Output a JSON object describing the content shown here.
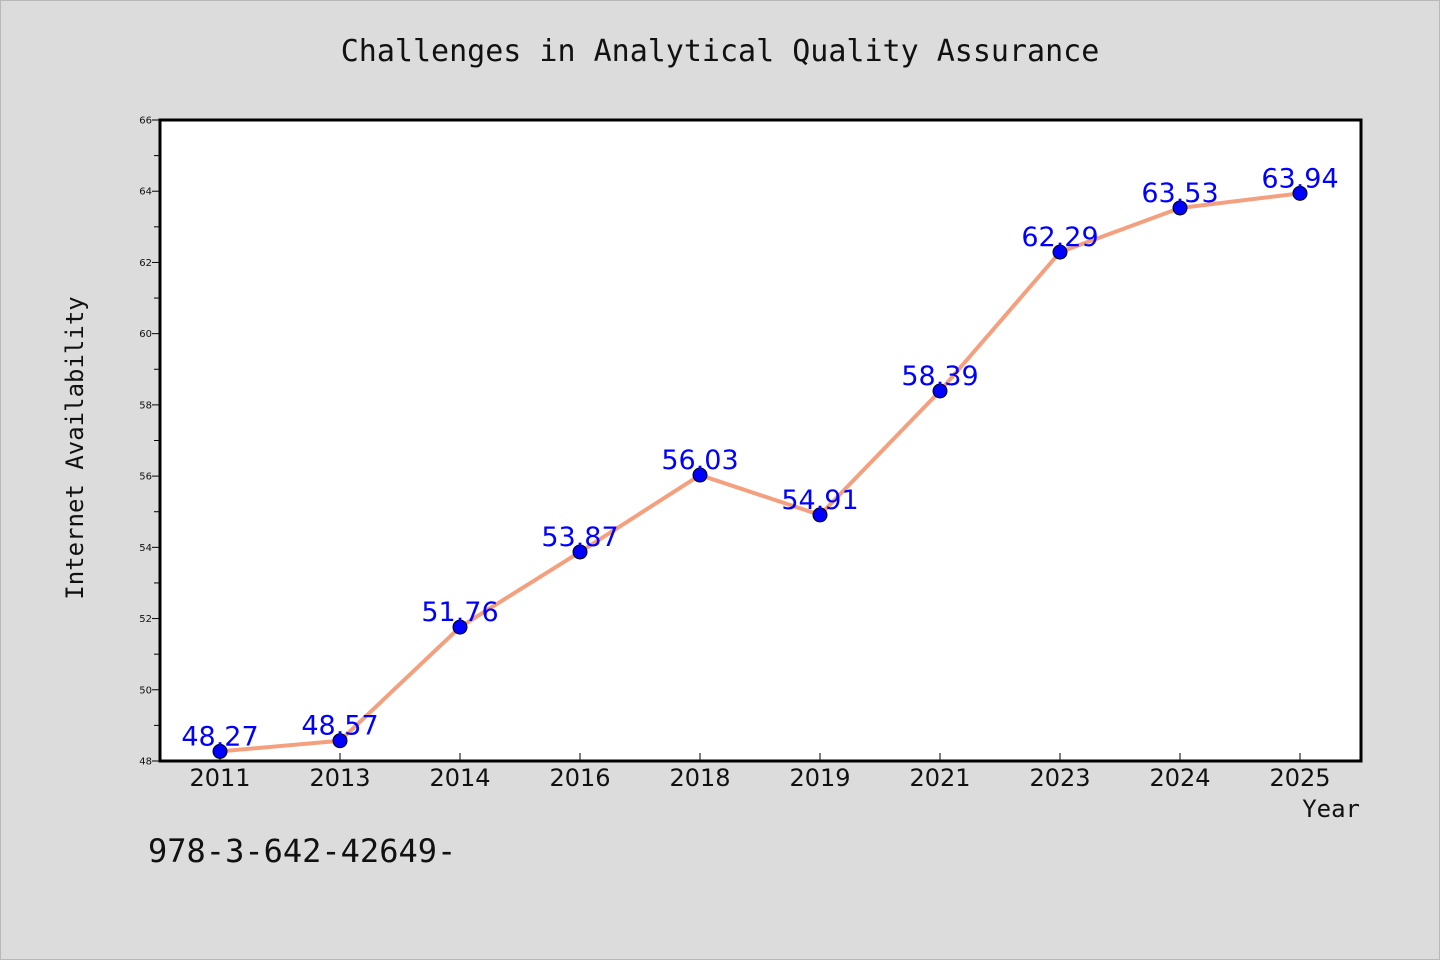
{
  "chart_data": {
    "type": "line",
    "title": "Challenges in Analytical Quality Assurance",
    "xlabel": "Year",
    "ylabel": "Internet Availability",
    "categories": [
      "2011",
      "2013",
      "2014",
      "2016",
      "2018",
      "2019",
      "2021",
      "2023",
      "2024",
      "2025"
    ],
    "series": [
      {
        "values": [
          48.27,
          48.57,
          51.76,
          53.87,
          56.03,
          54.91,
          58.39,
          62.29,
          63.53,
          63.94
        ],
        "labels": [
          "48.27",
          "48.57",
          "51.76",
          "53.87",
          "56.03",
          "54.91",
          "58.39",
          "62.29",
          "63.53",
          "63.94"
        ]
      }
    ],
    "ylim": [
      48,
      66
    ],
    "yticks": [
      "48",
      "50",
      "52",
      "54",
      "56",
      "58",
      "60",
      "62",
      "64",
      "66"
    ],
    "grid": false,
    "line_color": "#f4a07e",
    "marker_color": "#0000ff",
    "label_color": "#0000ff",
    "background": "#dcdcdc",
    "plot_background": "#ffffff"
  },
  "footer": {
    "code": "978-3-642-42649-"
  }
}
